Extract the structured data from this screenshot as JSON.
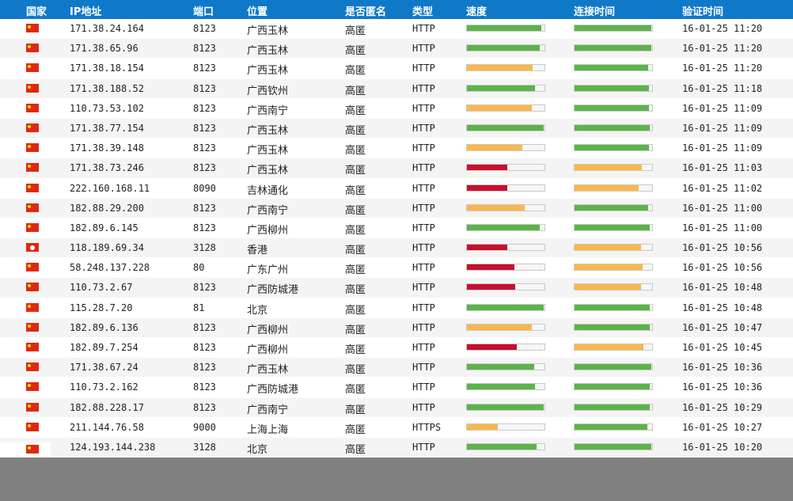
{
  "colors": {
    "header_bg": "#0f79c8",
    "good": "#5bb44a",
    "medium": "#f9b84d",
    "bad": "#c8102e"
  },
  "headers": {
    "country": "国家",
    "ip": "IP地址",
    "port": "端口",
    "location": "位置",
    "anonymity": "是否匿名",
    "type": "类型",
    "speed": "速度",
    "connect_time": "连接时间",
    "verify_time": "验证时间"
  },
  "rows": [
    {
      "flag": "china-flag-icon",
      "ip": "171.38.24.164",
      "port": "8123",
      "location": "广西玉林",
      "anonymity": "高匿",
      "type": "HTTP",
      "speed": 0.96,
      "speed_level": "good",
      "connect": 0.99,
      "connect_level": "good",
      "time": "16-01-25 11:20"
    },
    {
      "flag": "china-flag-icon",
      "ip": "171.38.65.96",
      "port": "8123",
      "location": "广西玉林",
      "anonymity": "高匿",
      "type": "HTTP",
      "speed": 0.94,
      "speed_level": "good",
      "connect": 0.99,
      "connect_level": "good",
      "time": "16-01-25 11:20"
    },
    {
      "flag": "china-flag-icon",
      "ip": "171.38.18.154",
      "port": "8123",
      "location": "广西玉林",
      "anonymity": "高匿",
      "type": "HTTP",
      "speed": 0.85,
      "speed_level": "medium",
      "connect": 0.95,
      "connect_level": "good",
      "time": "16-01-25 11:20"
    },
    {
      "flag": "china-flag-icon",
      "ip": "171.38.188.52",
      "port": "8123",
      "location": "广西钦州",
      "anonymity": "高匿",
      "type": "HTTP",
      "speed": 0.88,
      "speed_level": "good",
      "connect": 0.96,
      "connect_level": "good",
      "time": "16-01-25 11:18"
    },
    {
      "flag": "china-flag-icon",
      "ip": "110.73.53.102",
      "port": "8123",
      "location": "广西南宁",
      "anonymity": "高匿",
      "type": "HTTP",
      "speed": 0.84,
      "speed_level": "medium",
      "connect": 0.96,
      "connect_level": "good",
      "time": "16-01-25 11:09"
    },
    {
      "flag": "china-flag-icon",
      "ip": "171.38.77.154",
      "port": "8123",
      "location": "广西玉林",
      "anonymity": "高匿",
      "type": "HTTP",
      "speed": 0.99,
      "speed_level": "good",
      "connect": 0.97,
      "connect_level": "good",
      "time": "16-01-25 11:09"
    },
    {
      "flag": "china-flag-icon",
      "ip": "171.38.39.148",
      "port": "8123",
      "location": "广西玉林",
      "anonymity": "高匿",
      "type": "HTTP",
      "speed": 0.71,
      "speed_level": "medium",
      "connect": 0.96,
      "connect_level": "good",
      "time": "16-01-25 11:09"
    },
    {
      "flag": "china-flag-icon",
      "ip": "171.38.73.246",
      "port": "8123",
      "location": "广西玉林",
      "anonymity": "高匿",
      "type": "HTTP",
      "speed": 0.52,
      "speed_level": "bad",
      "connect": 0.87,
      "connect_level": "medium",
      "time": "16-01-25 11:03"
    },
    {
      "flag": "china-flag-icon",
      "ip": "222.160.168.11",
      "port": "8090",
      "location": "吉林通化",
      "anonymity": "高匿",
      "type": "HTTP",
      "speed": 0.52,
      "speed_level": "bad",
      "connect": 0.83,
      "connect_level": "medium",
      "time": "16-01-25 11:02"
    },
    {
      "flag": "china-flag-icon",
      "ip": "182.88.29.200",
      "port": "8123",
      "location": "广西南宁",
      "anonymity": "高匿",
      "type": "HTTP",
      "speed": 0.74,
      "speed_level": "medium",
      "connect": 0.95,
      "connect_level": "good",
      "time": "16-01-25 11:00"
    },
    {
      "flag": "china-flag-icon",
      "ip": "182.89.6.145",
      "port": "8123",
      "location": "广西柳州",
      "anonymity": "高匿",
      "type": "HTTP",
      "speed": 0.94,
      "speed_level": "good",
      "connect": 0.97,
      "connect_level": "good",
      "time": "16-01-25 11:00"
    },
    {
      "flag": "hong-kong-flag-icon",
      "ip": "118.189.69.34",
      "port": "3128",
      "location": "香港",
      "anonymity": "高匿",
      "type": "HTTP",
      "speed": 0.52,
      "speed_level": "bad",
      "connect": 0.86,
      "connect_level": "medium",
      "time": "16-01-25 10:56"
    },
    {
      "flag": "china-flag-icon",
      "ip": "58.248.137.228",
      "port": "80",
      "location": "广东广州",
      "anonymity": "高匿",
      "type": "HTTP",
      "speed": 0.61,
      "speed_level": "bad",
      "connect": 0.88,
      "connect_level": "medium",
      "time": "16-01-25 10:56"
    },
    {
      "flag": "china-flag-icon",
      "ip": "110.73.2.67",
      "port": "8123",
      "location": "广西防城港",
      "anonymity": "高匿",
      "type": "HTTP",
      "speed": 0.62,
      "speed_level": "bad",
      "connect": 0.86,
      "connect_level": "medium",
      "time": "16-01-25 10:48"
    },
    {
      "flag": "china-flag-icon",
      "ip": "115.28.7.20",
      "port": "81",
      "location": "北京",
      "anonymity": "高匿",
      "type": "HTTP",
      "speed": 0.99,
      "speed_level": "good",
      "connect": 0.97,
      "connect_level": "good",
      "time": "16-01-25 10:48"
    },
    {
      "flag": "china-flag-icon",
      "ip": "182.89.6.136",
      "port": "8123",
      "location": "广西柳州",
      "anonymity": "高匿",
      "type": "HTTP",
      "speed": 0.84,
      "speed_level": "medium",
      "connect": 0.97,
      "connect_level": "good",
      "time": "16-01-25 10:47"
    },
    {
      "flag": "china-flag-icon",
      "ip": "182.89.7.254",
      "port": "8123",
      "location": "广西柳州",
      "anonymity": "高匿",
      "type": "HTTP",
      "speed": 0.64,
      "speed_level": "bad",
      "connect": 0.89,
      "connect_level": "medium",
      "time": "16-01-25 10:45"
    },
    {
      "flag": "china-flag-icon",
      "ip": "171.38.67.24",
      "port": "8123",
      "location": "广西玉林",
      "anonymity": "高匿",
      "type": "HTTP",
      "speed": 0.87,
      "speed_level": "good",
      "connect": 0.99,
      "connect_level": "good",
      "time": "16-01-25 10:36"
    },
    {
      "flag": "china-flag-icon",
      "ip": "110.73.2.162",
      "port": "8123",
      "location": "广西防城港",
      "anonymity": "高匿",
      "type": "HTTP",
      "speed": 0.88,
      "speed_level": "good",
      "connect": 0.97,
      "connect_level": "good",
      "time": "16-01-25 10:36"
    },
    {
      "flag": "china-flag-icon",
      "ip": "182.88.228.17",
      "port": "8123",
      "location": "广西南宁",
      "anonymity": "高匿",
      "type": "HTTP",
      "speed": 0.99,
      "speed_level": "good",
      "connect": 0.97,
      "connect_level": "good",
      "time": "16-01-25 10:29"
    },
    {
      "flag": "china-flag-icon",
      "ip": "211.144.76.58",
      "port": "9000",
      "location": "上海上海",
      "anonymity": "高匿",
      "type": "HTTPS",
      "speed": 0.4,
      "speed_level": "medium",
      "connect": 0.94,
      "connect_level": "good",
      "time": "16-01-25 10:27"
    },
    {
      "flag": "china-flag-icon",
      "ip": "124.193.144.238",
      "port": "3128",
      "location": "北京",
      "anonymity": "高匿",
      "type": "HTTP",
      "speed": 0.9,
      "speed_level": "good",
      "connect": 0.99,
      "connect_level": "good",
      "time": "16-01-25 10:20"
    }
  ],
  "partial_row": {
    "flag": "china-flag-icon"
  }
}
